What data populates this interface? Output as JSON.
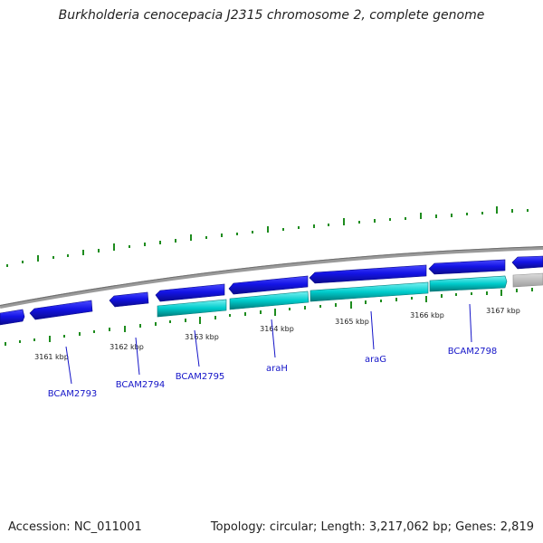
{
  "header": {
    "title": "Burkholderia cenocepacia J2315 chromosome 2, complete genome"
  },
  "footer": {
    "accession": "Accession: NC_011001",
    "summary": "Topology: circular; Length: 3,217,062 bp; Genes: 2,819"
  },
  "colors": {
    "backbone": "#8c8c8c",
    "forward_gene": "#1414e6",
    "reverse_gene": "#00cccc",
    "other_feature": "#b4b4b4",
    "gc_marks": "#1e8c1e",
    "gene_label": "#1414c8"
  },
  "scale_ticks": [
    {
      "label": "3161 kbp"
    },
    {
      "label": "3162 kbp"
    },
    {
      "label": "3163 kbp"
    },
    {
      "label": "3164 kbp"
    },
    {
      "label": "3165 kbp"
    },
    {
      "label": "3166 kbp"
    },
    {
      "label": "3167 kbp"
    }
  ],
  "gene_labels": [
    {
      "label": "BCAM2793"
    },
    {
      "label": "BCAM2794"
    },
    {
      "label": "BCAM2795"
    },
    {
      "label": "araH"
    },
    {
      "label": "araG"
    },
    {
      "label": "BCAM2798"
    }
  ]
}
